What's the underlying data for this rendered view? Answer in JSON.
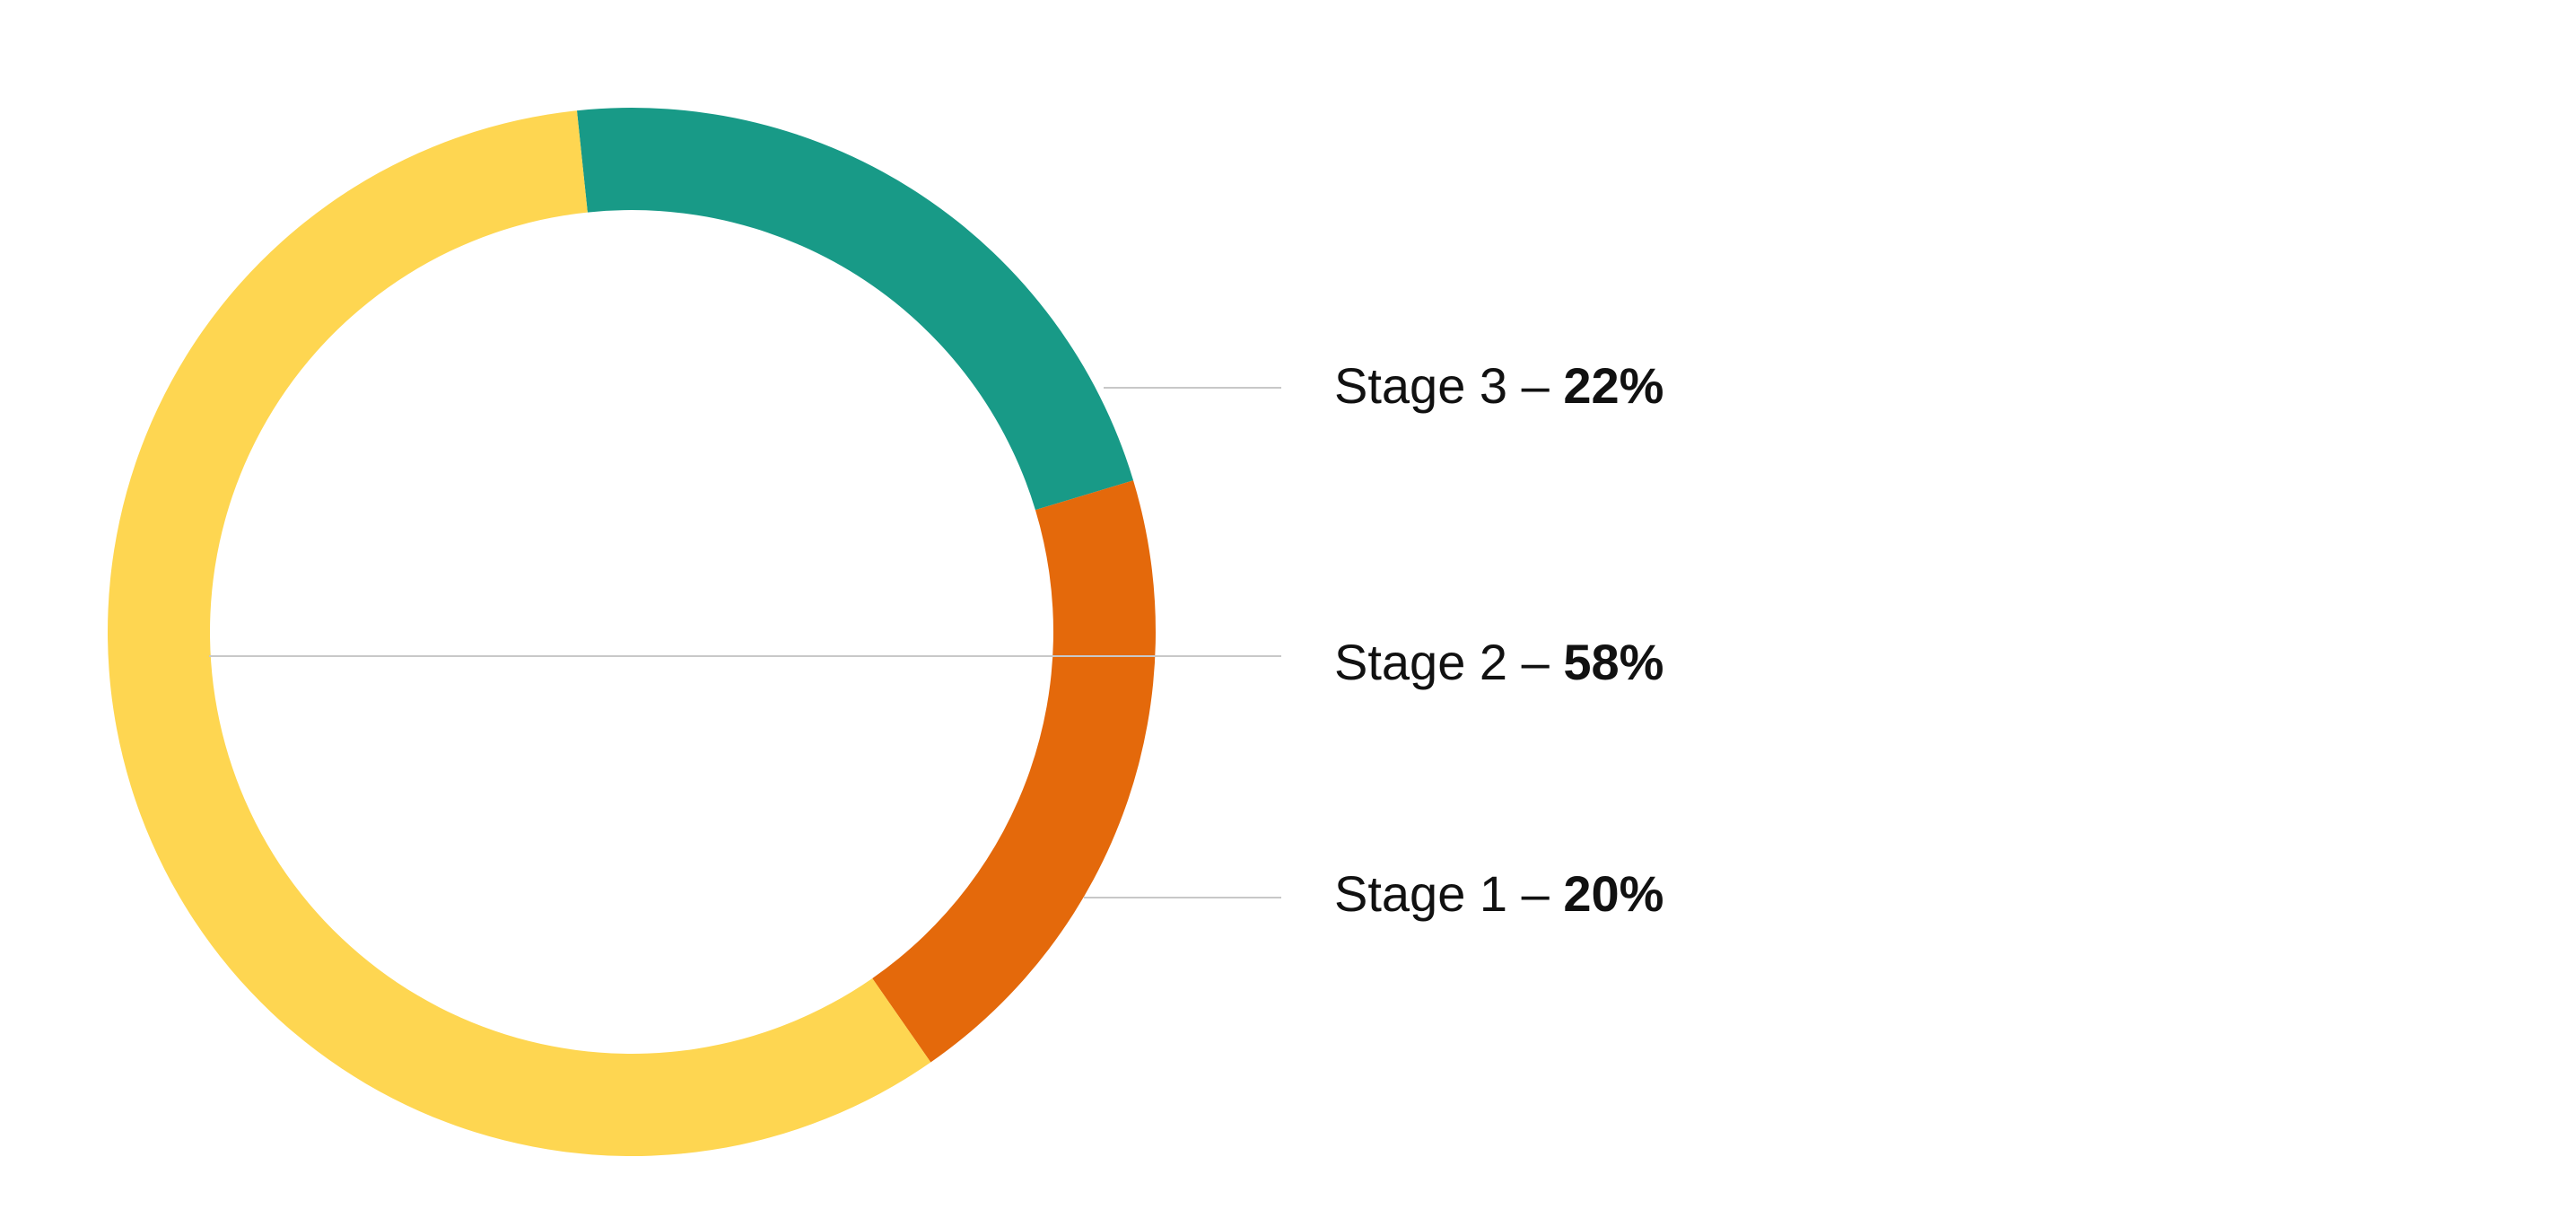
{
  "chart_data": {
    "type": "pie",
    "style": "donut",
    "series": [
      {
        "label": "Stage 3",
        "value": 22,
        "display_value": "22%",
        "color": "#189a87"
      },
      {
        "label": "Stage 1",
        "value": 20,
        "display_value": "20%",
        "color": "#e4690b"
      },
      {
        "label": "Stage 2",
        "value": 58,
        "display_value": "58%",
        "color": "#fed651"
      }
    ],
    "labels": [
      {
        "name": "Stage 3",
        "separator": " – ",
        "value": "22%"
      },
      {
        "name": "Stage 2",
        "separator": " – ",
        "value": "58%"
      },
      {
        "name": "Stage 1",
        "separator": " – ",
        "value": "20%"
      }
    ],
    "legend_placement": "right"
  }
}
